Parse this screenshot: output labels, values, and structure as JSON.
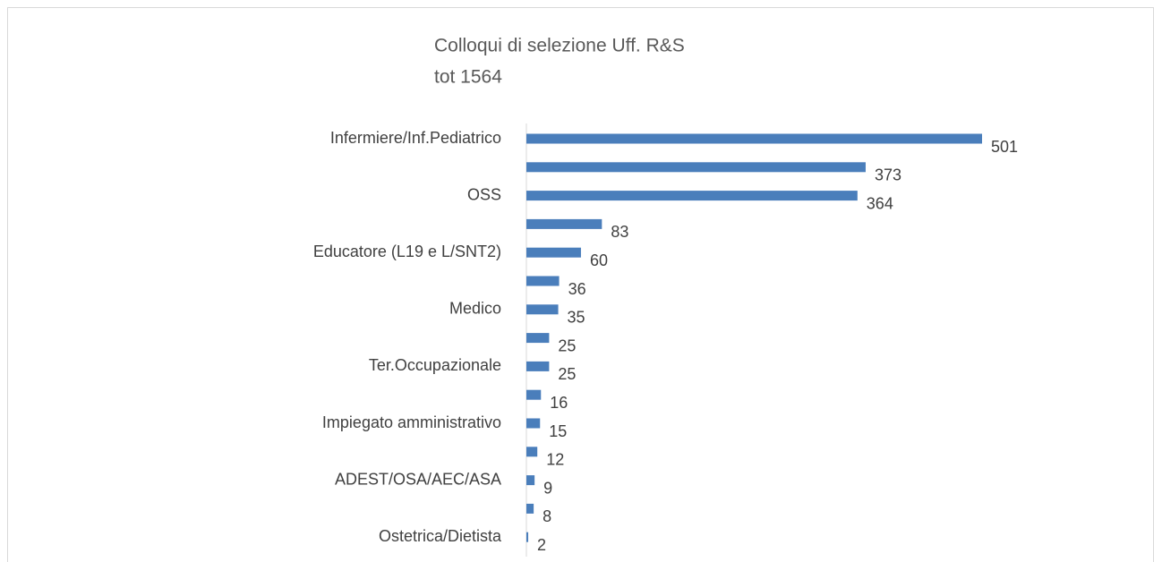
{
  "chart_data": {
    "type": "bar",
    "orientation": "horizontal",
    "title": "Colloqui di selezione Uff. R&S",
    "subtitle": "tot 1564",
    "categories": [
      "Infermiere/Inf.Pediatrico",
      null,
      "OSS",
      null,
      "Educatore (L19 e L/SNT2)",
      null,
      "Medico",
      null,
      "Ter.Occupazionale",
      null,
      "Impiegato amministrativo",
      null,
      "ADEST/OSA/AEC/ASA",
      null,
      "Ostetrica/Dietista"
    ],
    "values": [
      501,
      373,
      364,
      83,
      60,
      36,
      35,
      25,
      25,
      16,
      15,
      12,
      9,
      8,
      2
    ],
    "color": "#4a7ebb"
  }
}
